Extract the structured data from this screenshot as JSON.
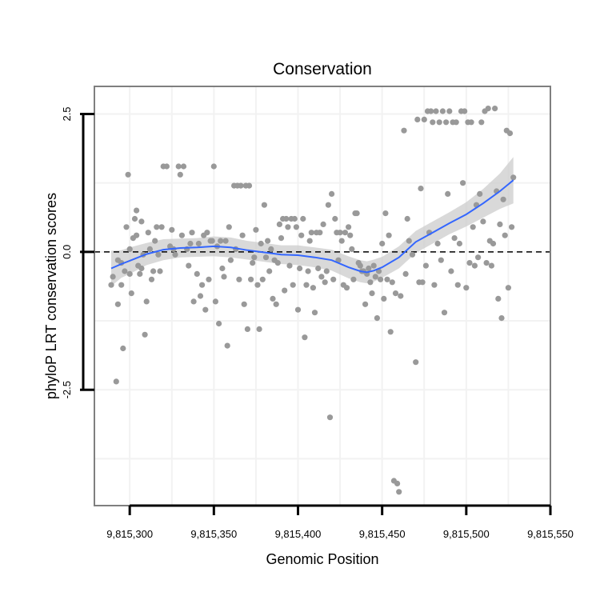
{
  "chart_data": {
    "type": "scatter",
    "title": "Conservation",
    "xlabel": "Genomic Position",
    "ylabel": "phyloP LRT conservation scores",
    "xlim": [
      9815279,
      9815550
    ],
    "ylim": [
      -4.6,
      3.0
    ],
    "x_ticks": [
      9815300,
      9815350,
      9815400,
      9815450,
      9815500,
      9815550
    ],
    "x_tick_labels": [
      "9,815,300",
      "9,815,350",
      "9,815,400",
      "9,815,450",
      "9,815,500",
      "9,815,550"
    ],
    "y_ticks": [
      -2.5,
      0.0,
      2.5
    ],
    "y_tick_labels": [
      "-2.5",
      "0.0",
      "2.5"
    ],
    "grid": true,
    "reference_line": {
      "y": 0,
      "style": "dashed"
    },
    "colors": {
      "points": "#999999",
      "smooth": "#3366ff",
      "band": "#cccccc",
      "frame": "#7f7f7f",
      "grid": "#f2f2f2"
    },
    "points": [
      [
        9815289,
        -0.6
      ],
      [
        9815290,
        -0.45
      ],
      [
        9815292,
        -2.35
      ],
      [
        9815293,
        -0.95
      ],
      [
        9815293,
        -0.15
      ],
      [
        9815295,
        -0.2
      ],
      [
        9815295,
        -0.6
      ],
      [
        9815296,
        -1.75
      ],
      [
        9815297,
        -0.35
      ],
      [
        9815298,
        0.45
      ],
      [
        9815299,
        1.4
      ],
      [
        9815300,
        -0.4
      ],
      [
        9815300,
        0.05
      ],
      [
        9815301,
        -0.75
      ],
      [
        9815302,
        0.25
      ],
      [
        9815303,
        0.6
      ],
      [
        9815304,
        0.75
      ],
      [
        9815304,
        0.3
      ],
      [
        9815305,
        -0.25
      ],
      [
        9815306,
        -0.4
      ],
      [
        9815307,
        0.55
      ],
      [
        9815307,
        -0.3
      ],
      [
        9815308,
        -0.05
      ],
      [
        9815309,
        -1.5
      ],
      [
        9815310,
        -0.9
      ],
      [
        9815311,
        0.35
      ],
      [
        9815312,
        0.05
      ],
      [
        9815313,
        -0.5
      ],
      [
        9815314,
        -0.35
      ],
      [
        9815315,
        0.2
      ],
      [
        9815316,
        0.45
      ],
      [
        9815317,
        -0.05
      ],
      [
        9815318,
        -0.35
      ],
      [
        9815319,
        0.45
      ],
      [
        9815320,
        1.55
      ],
      [
        9815322,
        1.55
      ],
      [
        9815324,
        0.1
      ],
      [
        9815325,
        0.4
      ],
      [
        9815326,
        0.05
      ],
      [
        9815327,
        -0.05
      ],
      [
        9815329,
        1.55
      ],
      [
        9815330,
        1.4
      ],
      [
        9815331,
        0.3
      ],
      [
        9815332,
        1.55
      ],
      [
        9815334,
        0.05
      ],
      [
        9815335,
        -0.25
      ],
      [
        9815336,
        0.15
      ],
      [
        9815337,
        0.35
      ],
      [
        9815338,
        -0.9
      ],
      [
        9815340,
        -0.4
      ],
      [
        9815341,
        0.15
      ],
      [
        9815342,
        -0.8
      ],
      [
        9815343,
        -0.6
      ],
      [
        9815344,
        0.3
      ],
      [
        9815345,
        -1.05
      ],
      [
        9815346,
        0.35
      ],
      [
        9815347,
        -0.5
      ],
      [
        9815348,
        0.2
      ],
      [
        9815349,
        0.2
      ],
      [
        9815350,
        1.55
      ],
      [
        9815351,
        -0.9
      ],
      [
        9815352,
        0.1
      ],
      [
        9815353,
        -1.3
      ],
      [
        9815354,
        0.2
      ],
      [
        9815355,
        -0.3
      ],
      [
        9815356,
        -0.45
      ],
      [
        9815357,
        0.2
      ],
      [
        9815358,
        -1.7
      ],
      [
        9815359,
        0.45
      ],
      [
        9815360,
        -0.15
      ],
      [
        9815362,
        1.2
      ],
      [
        9815363,
        0.05
      ],
      [
        9815364,
        1.2
      ],
      [
        9815365,
        -0.5
      ],
      [
        9815366,
        1.2
      ],
      [
        9815367,
        0.3
      ],
      [
        9815368,
        -0.95
      ],
      [
        9815369,
        1.2
      ],
      [
        9815370,
        -1.4
      ],
      [
        9815371,
        1.2
      ],
      [
        9815372,
        -0.5
      ],
      [
        9815373,
        -0.2
      ],
      [
        9815374,
        -0.1
      ],
      [
        9815375,
        0.4
      ],
      [
        9815376,
        -0.6
      ],
      [
        9815377,
        -1.4
      ],
      [
        9815378,
        0.15
      ],
      [
        9815379,
        -0.5
      ],
      [
        9815380,
        0.85
      ],
      [
        9815381,
        -0.1
      ],
      [
        9815382,
        0.2
      ],
      [
        9815383,
        -0.35
      ],
      [
        9815384,
        0.05
      ],
      [
        9815385,
        -0.85
      ],
      [
        9815386,
        -0.15
      ],
      [
        9815387,
        -0.95
      ],
      [
        9815388,
        -0.2
      ],
      [
        9815389,
        0.5
      ],
      [
        9815390,
        0.25
      ],
      [
        9815391,
        0.6
      ],
      [
        9815392,
        -0.7
      ],
      [
        9815393,
        0.6
      ],
      [
        9815394,
        0.45
      ],
      [
        9815395,
        -0.25
      ],
      [
        9815396,
        0.6
      ],
      [
        9815397,
        -0.6
      ],
      [
        9815398,
        0.6
      ],
      [
        9815399,
        0.45
      ],
      [
        9815400,
        -1.05
      ],
      [
        9815401,
        -0.3
      ],
      [
        9815402,
        0.3
      ],
      [
        9815403,
        0.6
      ],
      [
        9815404,
        -1.55
      ],
      [
        9815405,
        -0.6
      ],
      [
        9815406,
        -0.35
      ],
      [
        9815407,
        0.2
      ],
      [
        9815408,
        0.35
      ],
      [
        9815409,
        -0.65
      ],
      [
        9815410,
        -1.1
      ],
      [
        9815411,
        0.35
      ],
      [
        9815412,
        -0.3
      ],
      [
        9815413,
        0.35
      ],
      [
        9815414,
        -0.45
      ],
      [
        9815415,
        0.5
      ],
      [
        9815416,
        -0.55
      ],
      [
        9815417,
        -0.35
      ],
      [
        9815418,
        0.85
      ],
      [
        9815419,
        -3.0
      ],
      [
        9815420,
        1.05
      ],
      [
        9815421,
        -0.5
      ],
      [
        9815422,
        0.6
      ],
      [
        9815423,
        0.35
      ],
      [
        9815424,
        -0.15
      ],
      [
        9815425,
        0.35
      ],
      [
        9815426,
        0.2
      ],
      [
        9815427,
        -0.6
      ],
      [
        9815428,
        0.35
      ],
      [
        9815429,
        -0.65
      ],
      [
        9815430,
        0.45
      ],
      [
        9815431,
        0.3
      ],
      [
        9815432,
        0.05
      ],
      [
        9815433,
        -0.5
      ],
      [
        9815434,
        0.7
      ],
      [
        9815435,
        0.7
      ],
      [
        9815436,
        -0.2
      ],
      [
        9815437,
        -0.25
      ],
      [
        9815438,
        -0.35
      ],
      [
        9815439,
        -0.35
      ],
      [
        9815440,
        -0.95
      ],
      [
        9815441,
        -0.4
      ],
      [
        9815442,
        -0.3
      ],
      [
        9815443,
        -0.55
      ],
      [
        9815444,
        -0.75
      ],
      [
        9815445,
        -0.25
      ],
      [
        9815446,
        -0.45
      ],
      [
        9815447,
        -1.2
      ],
      [
        9815448,
        -0.35
      ],
      [
        9815449,
        -0.5
      ],
      [
        9815450,
        0.15
      ],
      [
        9815451,
        -0.85
      ],
      [
        9815452,
        0.7
      ],
      [
        9815453,
        -0.5
      ],
      [
        9815454,
        0.3
      ],
      [
        9815455,
        -1.45
      ],
      [
        9815456,
        -0.55
      ],
      [
        9815457,
        -4.15
      ],
      [
        9815458,
        -0.75
      ],
      [
        9815459,
        -4.2
      ],
      [
        9815460,
        -4.35
      ],
      [
        9815461,
        -0.8
      ],
      [
        9815463,
        2.2
      ],
      [
        9815464,
        -0.4
      ],
      [
        9815465,
        0.6
      ],
      [
        9815466,
        0.2
      ],
      [
        9815468,
        -0.05
      ],
      [
        9815470,
        -2.0
      ],
      [
        9815471,
        2.4
      ],
      [
        9815472,
        -0.55
      ],
      [
        9815473,
        1.15
      ],
      [
        9815474,
        -0.55
      ],
      [
        9815475,
        2.4
      ],
      [
        9815476,
        -0.25
      ],
      [
        9815477,
        2.55
      ],
      [
        9815478,
        0.35
      ],
      [
        9815479,
        2.55
      ],
      [
        9815480,
        2.35
      ],
      [
        9815481,
        -0.6
      ],
      [
        9815482,
        2.55
      ],
      [
        9815483,
        0.15
      ],
      [
        9815484,
        2.35
      ],
      [
        9815485,
        -0.15
      ],
      [
        9815486,
        2.55
      ],
      [
        9815487,
        -1.1
      ],
      [
        9815488,
        2.35
      ],
      [
        9815489,
        1.05
      ],
      [
        9815490,
        2.55
      ],
      [
        9815491,
        -0.35
      ],
      [
        9815492,
        2.35
      ],
      [
        9815493,
        0.25
      ],
      [
        9815494,
        2.35
      ],
      [
        9815495,
        -0.6
      ],
      [
        9815496,
        0.15
      ],
      [
        9815497,
        2.55
      ],
      [
        9815498,
        1.25
      ],
      [
        9815499,
        2.55
      ],
      [
        9815500,
        -0.65
      ],
      [
        9815501,
        2.35
      ],
      [
        9815502,
        -0.2
      ],
      [
        9815503,
        2.35
      ],
      [
        9815504,
        0.45
      ],
      [
        9815505,
        -0.25
      ],
      [
        9815506,
        0.85
      ],
      [
        9815507,
        -0.1
      ],
      [
        9815508,
        1.05
      ],
      [
        9815509,
        2.35
      ],
      [
        9815510,
        0.55
      ],
      [
        9815511,
        2.55
      ],
      [
        9815512,
        -0.2
      ],
      [
        9815513,
        2.6
      ],
      [
        9815514,
        0.2
      ],
      [
        9815515,
        -0.25
      ],
      [
        9815516,
        0.15
      ],
      [
        9815517,
        2.6
      ],
      [
        9815518,
        1.1
      ],
      [
        9815519,
        -0.85
      ],
      [
        9815520,
        0.5
      ],
      [
        9815521,
        -1.2
      ],
      [
        9815522,
        0.95
      ],
      [
        9815523,
        0.3
      ],
      [
        9815524,
        2.2
      ],
      [
        9815525,
        -0.65
      ],
      [
        9815526,
        2.15
      ],
      [
        9815527,
        0.45
      ],
      [
        9815528,
        1.35
      ]
    ],
    "smooth_line": {
      "x": [
        9815289,
        9815295,
        9815300,
        9815310,
        9815320,
        9815330,
        9815340,
        9815350,
        9815360,
        9815370,
        9815380,
        9815390,
        9815400,
        9815410,
        9815420,
        9815430,
        9815437,
        9815441,
        9815445,
        9815450,
        9815460,
        9815470,
        9815480,
        9815490,
        9815500,
        9815510,
        9815520,
        9815528
      ],
      "y": [
        -0.3,
        -0.22,
        -0.16,
        -0.04,
        0.04,
        0.07,
        0.08,
        0.1,
        0.08,
        0.03,
        -0.01,
        -0.05,
        -0.06,
        -0.1,
        -0.15,
        -0.28,
        -0.35,
        -0.37,
        -0.34,
        -0.28,
        -0.1,
        0.18,
        0.35,
        0.52,
        0.68,
        0.88,
        1.1,
        1.3
      ],
      "ci_low": [
        -0.62,
        -0.47,
        -0.4,
        -0.24,
        -0.15,
        -0.1,
        -0.09,
        -0.08,
        -0.1,
        -0.14,
        -0.18,
        -0.22,
        -0.24,
        -0.28,
        -0.34,
        -0.48,
        -0.55,
        -0.57,
        -0.54,
        -0.47,
        -0.3,
        -0.02,
        0.15,
        0.32,
        0.46,
        0.62,
        0.78,
        0.88
      ],
      "ci_high": [
        0.02,
        0.03,
        0.08,
        0.16,
        0.23,
        0.24,
        0.25,
        0.28,
        0.26,
        0.2,
        0.16,
        0.12,
        0.12,
        0.08,
        0.04,
        -0.08,
        -0.15,
        -0.17,
        -0.14,
        -0.09,
        0.1,
        0.38,
        0.55,
        0.72,
        0.9,
        1.14,
        1.42,
        1.72
      ]
    }
  }
}
